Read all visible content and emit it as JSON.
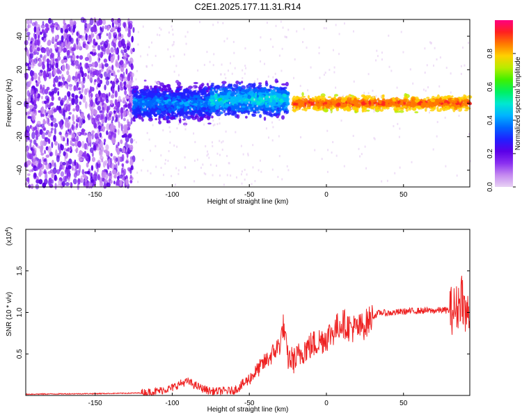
{
  "title": "C2E1.2025.177.11.31.R14",
  "chart_data": [
    {
      "type": "heatmap",
      "xlabel": "Height of straight line (km)",
      "ylabel": "Frequency (Hz)",
      "xlim": [
        -195,
        93
      ],
      "ylim": [
        -50,
        50
      ],
      "xticks": [
        -150,
        -100,
        -50,
        0,
        50
      ],
      "yticks": [
        -40,
        -20,
        0,
        20,
        40
      ],
      "colorbar": {
        "label": "Normalized spectral amplitude",
        "range": [
          0,
          1
        ],
        "ticks": [
          0.0,
          0.2,
          0.4,
          0.6,
          0.8
        ],
        "tick_labels": [
          "0.0",
          "0.2",
          "0.4",
          "0.6",
          "0.8"
        ],
        "colors": [
          "#e8d2f4",
          "#c58af0",
          "#8a2ff0",
          "#5b00e8",
          "#2020ff",
          "#0066ff",
          "#00b4ff",
          "#00e8d0",
          "#00f060",
          "#40f000",
          "#b8ec00",
          "#ffd000",
          "#ff7a00",
          "#ff2020",
          "#ff0080"
        ]
      },
      "regions": [
        {
          "x_range": [
            -195,
            -125
          ],
          "freq_range": [
            -50,
            50
          ],
          "amplitude": [
            0.05,
            0.22
          ],
          "description_values": "broadband"
        },
        {
          "x_range": [
            -125,
            -75
          ],
          "center_freq": 0,
          "bandwidth": 14,
          "amplitude": [
            0.15,
            0.45
          ]
        },
        {
          "x_range": [
            -75,
            -25
          ],
          "center_freq": 2,
          "bandwidth": 12,
          "amplitude": [
            0.2,
            0.55
          ]
        },
        {
          "x_range": [
            -22,
            93
          ],
          "center_freq": 0,
          "bandwidth": 6,
          "amplitude": [
            0.7,
            0.95
          ]
        }
      ],
      "grid": false
    },
    {
      "type": "line",
      "xlabel": "Height of straight line (km)",
      "ylabel": "SNR (10 * v/v)",
      "y_multiplier": "(x10⁴)",
      "y_multiplier_base": "(x10",
      "y_multiplier_exp": "4",
      "xlim": [
        -195,
        93
      ],
      "ylim": [
        0,
        2.0
      ],
      "xticks": [
        -150,
        -100,
        -50,
        0,
        50
      ],
      "yticks": [
        0.5,
        1.0,
        1.5
      ],
      "ytick_labels": [
        "0.5",
        "1.0",
        "1.5"
      ],
      "series": [
        {
          "color": "#ee2222",
          "x": [
            -195,
            -180,
            -165,
            -150,
            -135,
            -120,
            -110,
            -100,
            -95,
            -90,
            -85,
            -80,
            -75,
            -70,
            -60,
            -55,
            -50,
            -45,
            -40,
            -35,
            -30,
            -28,
            -25,
            -20,
            -15,
            -10,
            -5,
            0,
            5,
            10,
            15,
            20,
            25,
            30,
            35,
            40,
            50,
            60,
            70,
            75,
            80,
            85,
            88,
            90,
            93
          ],
          "y": [
            0.015,
            0.018,
            0.02,
            0.022,
            0.025,
            0.03,
            0.05,
            0.09,
            0.14,
            0.17,
            0.12,
            0.08,
            0.05,
            0.05,
            0.06,
            0.12,
            0.2,
            0.3,
            0.4,
            0.5,
            0.62,
            0.85,
            0.45,
            0.42,
            0.55,
            0.6,
            0.65,
            0.7,
            0.78,
            0.88,
            0.82,
            0.8,
            0.85,
            0.95,
            1.0,
            0.99,
            1.01,
            1.02,
            1.02,
            1.03,
            1.02,
            1.05,
            1.25,
            0.95,
            1.02
          ]
        }
      ],
      "grid": false
    }
  ]
}
